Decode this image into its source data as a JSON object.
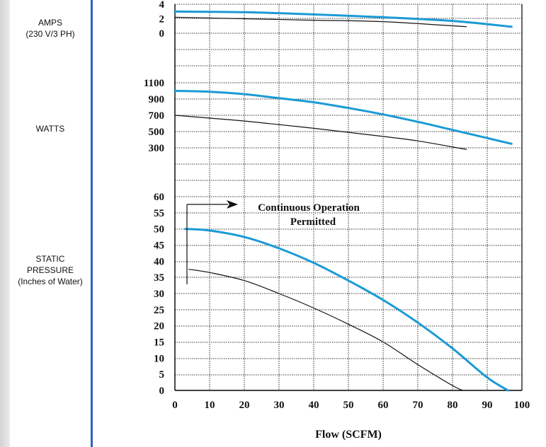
{
  "panel_labels": {
    "amps": [
      "AMPS",
      "(230 V/3 PH)"
    ],
    "watts": [
      "WATTS"
    ],
    "pressure": [
      "STATIC",
      "PRESSURE",
      "(Inches of Water)"
    ]
  },
  "colors": {
    "accent": "#2b63b8",
    "blue_curve": "#1a9ad6",
    "black_curve": "#111111",
    "grid": "#333333"
  },
  "chart_data": {
    "type": "line",
    "xlabel": "Flow (SCFM)",
    "xlim": [
      0,
      100
    ],
    "x_ticks": [
      0,
      10,
      20,
      30,
      40,
      50,
      60,
      70,
      80,
      90,
      100
    ],
    "panels": [
      {
        "id": "amps",
        "ylabel": "AMPS (230 V/3 PH)",
        "y_ticks": [
          4,
          2,
          0
        ],
        "series": [
          {
            "color": "#1a9ad6",
            "x": [
              0,
              20,
              40,
              60,
              80,
              97
            ],
            "y": [
              3.0,
              2.9,
              2.6,
              2.2,
              1.7,
              0.9
            ]
          },
          {
            "color": "#111111",
            "x": [
              0,
              20,
              40,
              60,
              84
            ],
            "y": [
              2.2,
              2.0,
              1.8,
              1.6,
              0.9
            ]
          }
        ]
      },
      {
        "id": "watts",
        "ylabel": "WATTS",
        "y_ticks": [
          1100,
          900,
          700,
          500,
          300
        ],
        "series": [
          {
            "color": "#1a9ad6",
            "x": [
              0,
              10,
              20,
              30,
              40,
              50,
              60,
              70,
              80,
              90,
              97
            ],
            "y": [
              1000,
              990,
              960,
              910,
              860,
              790,
              710,
              620,
              520,
              420,
              350
            ]
          },
          {
            "color": "#111111",
            "x": [
              0,
              10,
              20,
              30,
              40,
              50,
              60,
              70,
              84
            ],
            "y": [
              700,
              665,
              630,
              585,
              540,
              490,
              440,
              385,
              280
            ]
          }
        ]
      },
      {
        "id": "pressure",
        "ylabel": "STATIC PRESSURE (Inches of Water)",
        "y_ticks": [
          60,
          55,
          50,
          45,
          40,
          35,
          30,
          25,
          20,
          15,
          10,
          5,
          0
        ],
        "series": [
          {
            "color": "#1a9ad6",
            "x": [
              3,
              10,
              20,
              30,
              40,
              50,
              60,
              70,
              80,
              90,
              96
            ],
            "y": [
              50,
              49.5,
              47.5,
              44,
              39.5,
              34,
              28,
              21,
              13,
              4,
              0
            ]
          },
          {
            "color": "#111111",
            "x": [
              4,
              10,
              20,
              30,
              40,
              50,
              60,
              70,
              80,
              83
            ],
            "y": [
              37.5,
              36.5,
              34,
              30,
              25.5,
              20.5,
              15,
              8,
              1.5,
              0
            ]
          }
        ]
      }
    ],
    "annotations": [
      "Continuous Operation",
      "Permitted"
    ]
  }
}
